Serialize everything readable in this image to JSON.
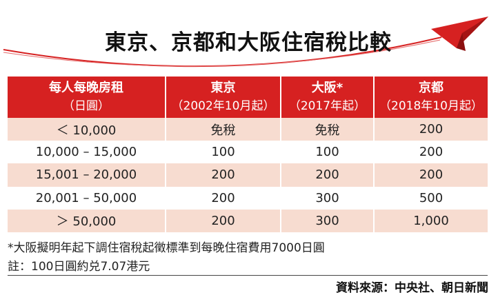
{
  "title": "東京、京都和大阪住宿稅比較",
  "table": {
    "headers": [
      {
        "line1": "每人每晚房租",
        "line2": "（日圓）"
      },
      {
        "line1": "東京",
        "line2": "（2002年10月起）"
      },
      {
        "line1": "大阪*",
        "line2": "（2017年起）"
      },
      {
        "line1": "京都",
        "line2": "（2018年10月起）"
      }
    ],
    "rows": [
      [
        "＜  10,000",
        "免稅",
        "免稅",
        "200"
      ],
      [
        "10,000  –  15,000",
        "100",
        "100",
        "200"
      ],
      [
        "15,001  –  20,000",
        "200",
        "200",
        "200"
      ],
      [
        "20,001  –  50,000",
        "200",
        "300",
        "500"
      ],
      [
        "＞  50,000",
        "200",
        "300",
        "1,000"
      ]
    ]
  },
  "notes": {
    "note1": "*大阪擬明年起下調住宿稅起徵標準到每晚住宿費用7000日圓",
    "note2": "註：100日圓約兑7.07港元"
  },
  "source": "資料來源：中央社、朝日新聞",
  "colors": {
    "accent": "#d62121",
    "row_tint": "#f7dcd0",
    "background": "#ffffff"
  },
  "icons": {
    "plane": "paper-plane-icon"
  }
}
